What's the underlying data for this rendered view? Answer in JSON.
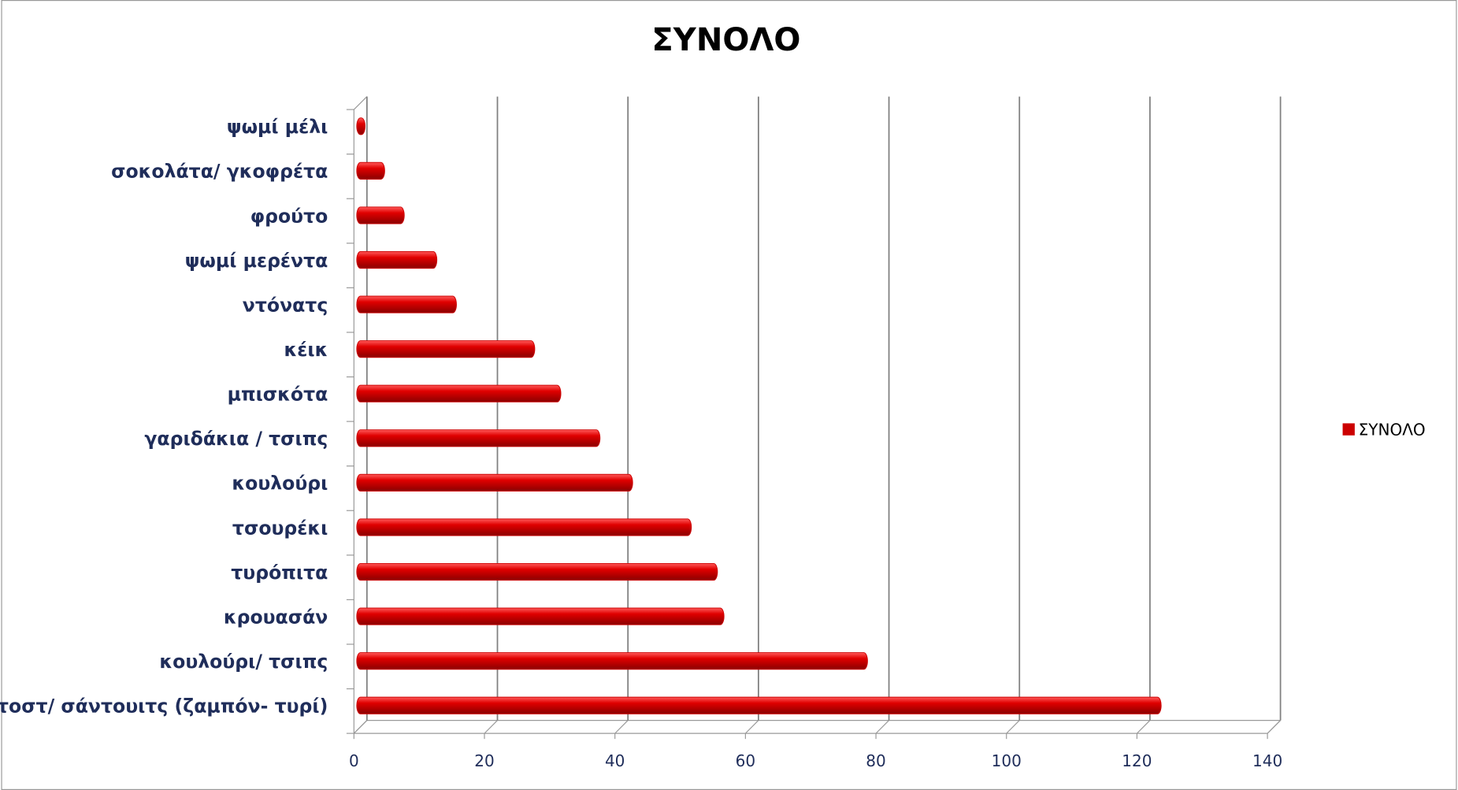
{
  "chart_data": {
    "type": "hbar",
    "title": "ΣΥΝΟΛΟ",
    "categories": [
      "ψωμί μέλι",
      "σοκολάτα/ γκοφρέτα",
      "φρούτο",
      "ψωμί μερέντα",
      "ντόνατς",
      "κέικ",
      "μπισκότα",
      "γαριδάκια / τσιπς",
      "κουλούρι",
      "τσουρέκι",
      "τυρόπιτα",
      "κρουασάν",
      "κουλούρι/ τσιπς",
      "τοστ/ σάντουιτς (ζαμπόν- τυρί)"
    ],
    "series": [
      {
        "name": "ΣΥΝΟΛΟ",
        "color": "#cc0000",
        "values": [
          1,
          4,
          7,
          12,
          15,
          27,
          31,
          37,
          42,
          51,
          55,
          56,
          78,
          123
        ]
      }
    ],
    "xlim": [
      0,
      140
    ],
    "xticks": [
      0,
      20,
      40,
      60,
      80,
      100,
      120,
      140
    ],
    "grid": true,
    "legend": "right"
  }
}
